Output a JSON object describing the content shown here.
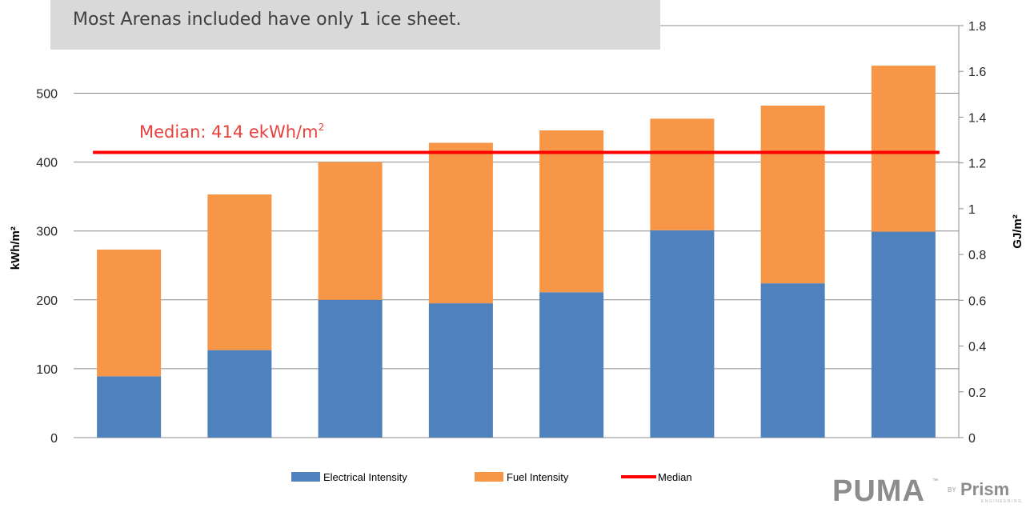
{
  "callout": {
    "text": "Most Arenas included have only 1 ice sheet."
  },
  "logo": {
    "main": "PUMA",
    "tm": "™",
    "by": "BY",
    "brand": "Prism",
    "sub": "ENGINEERING"
  },
  "colors": {
    "electrical": "#4f81bd",
    "fuel": "#f79646",
    "median": "#ff0000",
    "annotation": "#e8413c",
    "grid": "#808080",
    "axis_text": "#262626"
  },
  "chart_data": {
    "type": "bar",
    "stacked": true,
    "categories": [
      "",
      "",
      "",
      "",
      "",
      "",
      "",
      ""
    ],
    "series": [
      {
        "name": "Electrical Intensity",
        "values": [
          89,
          127,
          200,
          195,
          211,
          301,
          224,
          299
        ]
      },
      {
        "name": "Fuel Intensity",
        "values": [
          184,
          226,
          200,
          233,
          235,
          162,
          258,
          241
        ]
      }
    ],
    "median": {
      "name": "Median",
      "value": 414,
      "label_main": "Median: 414 ekWh/m",
      "label_sup": "2"
    },
    "ylabel": "kWh/m²",
    "ylim": [
      0,
      550
    ],
    "yticks": [
      0,
      100,
      200,
      300,
      400,
      500
    ],
    "y2label": "GJ/m²",
    "y2lim": [
      0,
      1.8
    ],
    "y2ticks": [
      "0",
      "0.2",
      "0.4",
      "0.6",
      "0.8",
      "1",
      "1.2",
      "1.4",
      "1.6",
      "1.8"
    ],
    "grid": true,
    "legend_position": "bottom"
  }
}
